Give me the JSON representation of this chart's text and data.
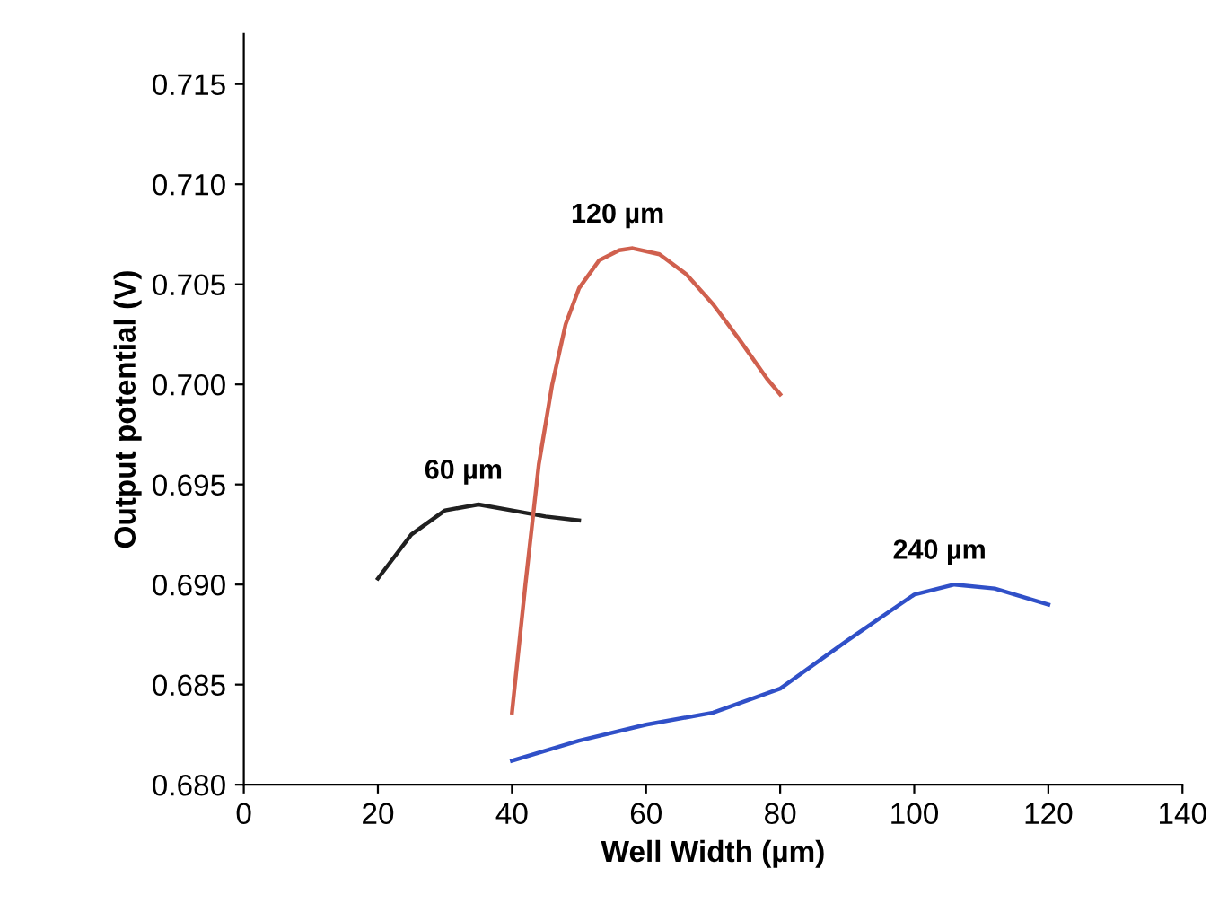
{
  "chart_data": {
    "type": "line",
    "xlabel": "Well Width (µm)",
    "ylabel": "Output potential (V)",
    "xlim": [
      0,
      140
    ],
    "xticks": [
      0,
      20,
      40,
      60,
      80,
      100,
      120,
      140
    ],
    "ylim": [
      0.68,
      0.7175
    ],
    "yticks": [
      {
        "value": 0.68,
        "label": "0.680"
      },
      {
        "value": 0.685,
        "label": "0.685"
      },
      {
        "value": 0.69,
        "label": "0.690"
      },
      {
        "value": 0.695,
        "label": "0.695"
      },
      {
        "value": 0.7,
        "label": "0.700"
      },
      {
        "value": 0.705,
        "label": "0.705"
      },
      {
        "value": 0.71,
        "label": "0.710"
      },
      {
        "value": 0.715,
        "label": "0.715"
      }
    ],
    "grid": false,
    "legend": false,
    "marker": "none",
    "line_style": "solid",
    "series": [
      {
        "name": "60 µm",
        "color": "#202020",
        "x": [
          20,
          25,
          30,
          35,
          40,
          45,
          50
        ],
        "values": [
          0.6903,
          0.6925,
          0.6937,
          0.694,
          0.6937,
          0.6934,
          0.6932
        ]
      },
      {
        "name": "120 µm",
        "color": "#d0604e",
        "x": [
          40,
          42,
          44,
          46,
          48,
          50,
          53,
          56,
          58,
          62,
          66,
          70,
          74,
          78,
          80
        ],
        "values": [
          0.6836,
          0.69,
          0.696,
          0.7,
          0.703,
          0.7048,
          0.7062,
          0.7067,
          0.7068,
          0.7065,
          0.7055,
          0.704,
          0.7022,
          0.7003,
          0.6995
        ]
      },
      {
        "name": "240 µm",
        "color": "#3050c8",
        "x": [
          40,
          50,
          60,
          70,
          80,
          90,
          100,
          106,
          112,
          120
        ],
        "values": [
          0.6812,
          0.6822,
          0.683,
          0.6836,
          0.6848,
          0.6872,
          0.6895,
          0.69,
          0.6898,
          0.689
        ]
      }
    ]
  }
}
